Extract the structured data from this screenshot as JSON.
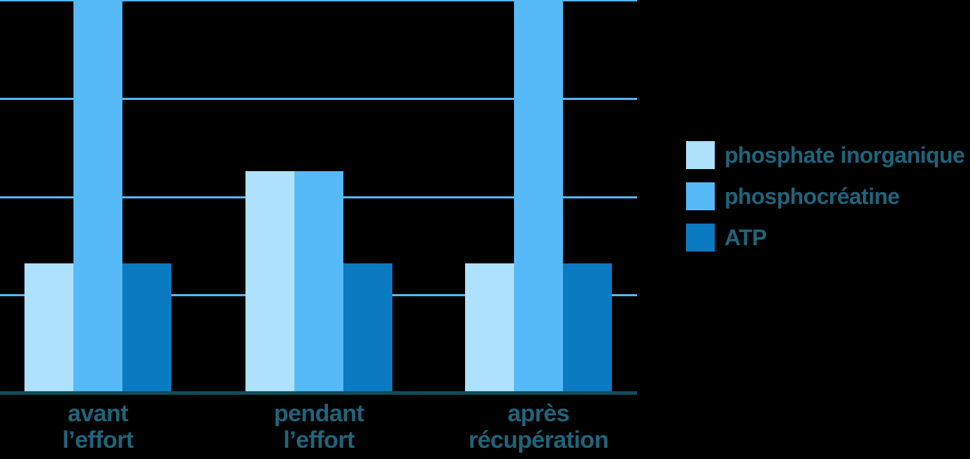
{
  "chart_data": {
    "type": "bar",
    "title": "",
    "xlabel": "",
    "ylabel": "",
    "categories": [
      {
        "line1": "avant",
        "line2": "l’effort"
      },
      {
        "line1": "pendant",
        "line2": "l’effort"
      },
      {
        "line1": "après",
        "line2": "récupération"
      }
    ],
    "series": [
      {
        "name": "phosphate inorganique",
        "color": "#aee1fc",
        "values": [
          1.31,
          2.25,
          1.31
        ],
        "clipped_at_top": [
          false,
          false,
          false
        ]
      },
      {
        "name": "phosphocréatine",
        "color": "#55baf7",
        "values": [
          4,
          2.25,
          4
        ],
        "clipped_at_top": [
          true,
          false,
          true
        ]
      },
      {
        "name": "ATP",
        "color": "#0a7ac1",
        "values": [
          1.31,
          1.31,
          1.31
        ],
        "clipped_at_top": [
          false,
          false,
          false
        ]
      }
    ],
    "ylim": [
      0,
      4
    ],
    "y_tick_labels": [],
    "gridlines": "4 horizontal light-blue lines (one at very top edge), no numeric axis labels",
    "legend_position": "right of plot",
    "note": "Qualitative chart (no numeric axis). Values expressed in gridline units (1 unit = spacing between gridlines). The phosphocréatine bars for 'avant l’effort' and 'après récupération' rise past the top edge of the chart and are clipped."
  },
  "legend": {
    "items": [
      {
        "label": "phosphate inorganique",
        "color": "#aee1fc"
      },
      {
        "label": "phosphocréatine",
        "color": "#55baf7"
      },
      {
        "label": "ATP",
        "color": "#0a7ac1"
      }
    ]
  },
  "colors": {
    "background": "#000000",
    "gridline": "#54b9f6",
    "axis_line": "#0e4f5a",
    "label_text": "#1f647a",
    "bar_light": "#aee1fc",
    "bar_medium": "#55baf7",
    "bar_dark": "#0a7ac1"
  }
}
